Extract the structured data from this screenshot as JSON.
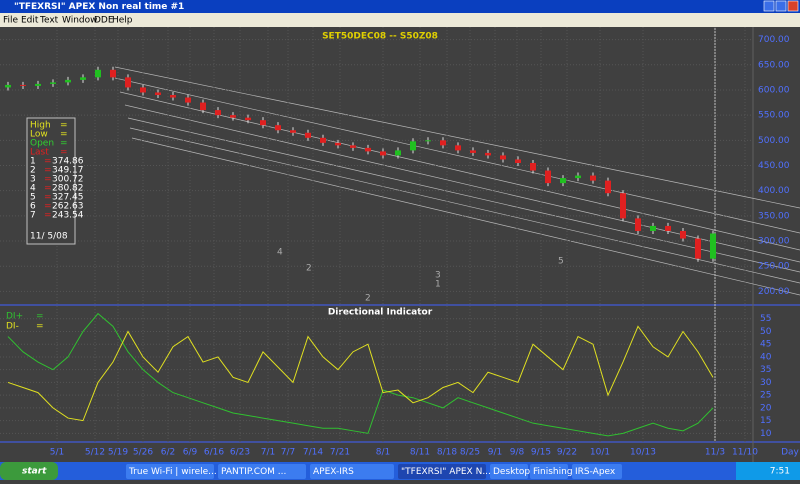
{
  "window": {
    "title": "\"TFEXRSI\" APEX Non real time #1",
    "menu": [
      "File",
      "Edit",
      "Text",
      "Window",
      "DDE",
      "Help"
    ]
  },
  "chart_data": [
    {
      "type": "candlestick",
      "title": "SET50DEC08 -- S50Z08",
      "open": [
        605,
        610,
        608,
        612,
        615,
        620,
        625,
        640,
        625,
        605,
        595,
        590,
        585,
        575,
        560,
        550,
        545,
        540,
        530,
        520,
        515,
        505,
        495,
        490,
        485,
        478,
        470,
        480,
        498,
        500,
        490,
        480,
        475,
        470,
        462,
        455,
        440,
        415,
        425,
        430,
        420,
        395,
        345,
        320,
        330,
        320,
        305,
        265
      ],
      "high": [
        616,
        616,
        618,
        621,
        626,
        631,
        646,
        646,
        631,
        611,
        601,
        596,
        591,
        581,
        566,
        556,
        551,
        546,
        536,
        526,
        521,
        511,
        501,
        496,
        491,
        484,
        486,
        504,
        506,
        506,
        496,
        486,
        481,
        476,
        468,
        461,
        446,
        431,
        436,
        436,
        426,
        401,
        351,
        336,
        336,
        326,
        311,
        321
      ],
      "low": [
        599,
        602,
        602,
        606,
        609,
        614,
        619,
        619,
        599,
        589,
        584,
        579,
        569,
        554,
        544,
        539,
        534,
        524,
        514,
        509,
        499,
        489,
        484,
        479,
        472,
        464,
        464,
        474,
        492,
        484,
        474,
        469,
        464,
        456,
        449,
        434,
        409,
        409,
        419,
        414,
        389,
        339,
        314,
        314,
        314,
        299,
        259,
        259
      ],
      "close": [
        610,
        608,
        612,
        615,
        620,
        625,
        640,
        625,
        605,
        595,
        590,
        585,
        575,
        560,
        550,
        545,
        540,
        530,
        520,
        515,
        505,
        495,
        490,
        485,
        478,
        470,
        480,
        498,
        500,
        490,
        480,
        475,
        470,
        462,
        455,
        440,
        415,
        425,
        430,
        420,
        395,
        345,
        320,
        330,
        320,
        305,
        265,
        315
      ],
      "ylim": [
        175,
        725
      ],
      "yticks": [
        {
          "value": 700,
          "label": "700.00"
        },
        {
          "value": 650,
          "label": "650.00"
        },
        {
          "value": 600,
          "label": "600.00"
        },
        {
          "value": 550,
          "label": "550.00"
        },
        {
          "value": 500,
          "label": "500.00"
        },
        {
          "value": 450,
          "label": "450.00"
        },
        {
          "value": 400,
          "label": "400.00"
        },
        {
          "value": 350,
          "label": "350.00"
        },
        {
          "value": 300,
          "label": "300.00"
        },
        {
          "value": 250,
          "label": "250.00"
        },
        {
          "value": 200,
          "label": "200.00"
        }
      ],
      "up_color": "#20c020",
      "down_color": "#e02020",
      "info": {
        "labels": [
          "High",
          "Low",
          "Open",
          "Last"
        ],
        "eq": "=",
        "levels": [
          [
            "1",
            "374.86"
          ],
          [
            "2",
            "349.17"
          ],
          [
            "3",
            "300.72"
          ],
          [
            "4",
            "280.82"
          ],
          [
            "5",
            "327.45"
          ],
          [
            "6",
            "262.63"
          ],
          [
            "7",
            "243.54"
          ]
        ],
        "date": "11/ 5/08"
      },
      "wave_labels": [
        "4",
        "2",
        "3",
        "1",
        "5",
        "2"
      ]
    },
    {
      "type": "line",
      "title": "Directional Indicator",
      "series": [
        {
          "name": "DI+",
          "color": "#30c030",
          "values": [
            48,
            42,
            38,
            35,
            40,
            50,
            57,
            52,
            42,
            35,
            30,
            26,
            24,
            22,
            20,
            18,
            17,
            16,
            15,
            14,
            13,
            12,
            12,
            11,
            10,
            27,
            25,
            24,
            22,
            20,
            24,
            22,
            20,
            18,
            16,
            14,
            13,
            12,
            11,
            10,
            9,
            10,
            12,
            14,
            12,
            11,
            14,
            20
          ]
        },
        {
          "name": "DI-",
          "color": "#e0e020",
          "values": [
            30,
            28,
            26,
            20,
            16,
            15,
            30,
            38,
            50,
            40,
            34,
            44,
            48,
            38,
            40,
            32,
            30,
            42,
            36,
            30,
            48,
            40,
            35,
            42,
            45,
            26,
            27,
            22,
            24,
            28,
            30,
            26,
            34,
            32,
            30,
            45,
            40,
            35,
            48,
            45,
            25,
            38,
            52,
            44,
            40,
            50,
            42,
            32
          ]
        }
      ],
      "legend_eq": "=",
      "ylim": [
        7,
        60
      ],
      "yticks": [
        55,
        50,
        45,
        40,
        35,
        30,
        25,
        20,
        15,
        10
      ]
    }
  ],
  "x_axis": {
    "dates": [
      "5/1",
      "5/12",
      "5/19",
      "5/26",
      "6/2",
      "6/9",
      "6/16",
      "6/23",
      "7/1",
      "7/7",
      "7/14",
      "7/21",
      "8/1",
      "8/11",
      "8/18",
      "8/25",
      "9/1",
      "9/8",
      "9/15",
      "9/22",
      "10/1",
      "10/13",
      "11/3",
      "11/10"
    ],
    "unit": "Day"
  },
  "taskbar": {
    "start": "start",
    "items": [
      "True Wi-Fi | wirele...",
      "PANTIP.COM ...",
      "APEX-IRS",
      "\"TFEXRSI\" APEX N...",
      "Desktop",
      "Finishing",
      "IRS-Apex"
    ],
    "clock": "7:51"
  }
}
